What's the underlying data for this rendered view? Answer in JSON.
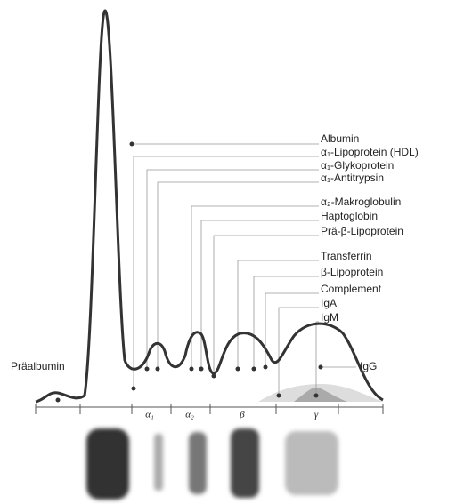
{
  "protein_labels": [
    "Albumin",
    "α₁-Lipoprotein (HDL)",
    "α₁-Glykoprotein",
    "α₁-Antitrypsin",
    "α₂-Makroglobulin",
    "Haptoglobin",
    "Prä-β-Lipoprotein",
    "Transferrin",
    "β-Lipoprotein",
    "Complement",
    "IgA",
    "IgM"
  ],
  "side_labels": {
    "left": "Präalbumin",
    "right": "IgG"
  },
  "fraction_labels": [
    "α₁",
    "α₂",
    "β",
    "γ"
  ]
}
